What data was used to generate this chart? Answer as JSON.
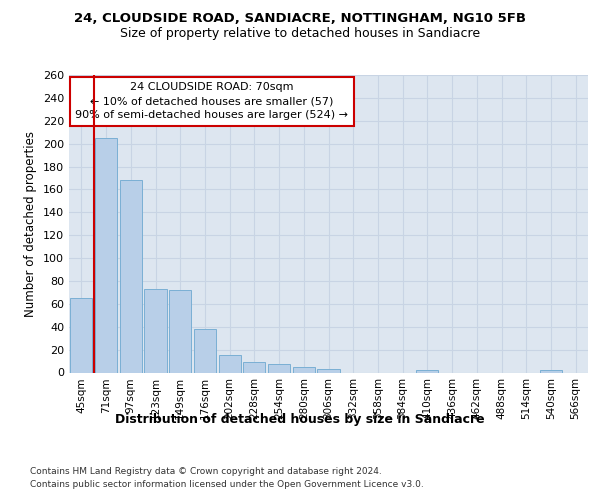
{
  "title1": "24, CLOUDSIDE ROAD, SANDIACRE, NOTTINGHAM, NG10 5FB",
  "title2": "Size of property relative to detached houses in Sandiacre",
  "xlabel_bottom": "Distribution of detached houses by size in Sandiacre",
  "ylabel": "Number of detached properties",
  "categories": [
    "45sqm",
    "71sqm",
    "97sqm",
    "123sqm",
    "149sqm",
    "176sqm",
    "202sqm",
    "228sqm",
    "254sqm",
    "280sqm",
    "306sqm",
    "332sqm",
    "358sqm",
    "384sqm",
    "410sqm",
    "436sqm",
    "462sqm",
    "488sqm",
    "514sqm",
    "540sqm",
    "566sqm"
  ],
  "values": [
    65,
    205,
    168,
    73,
    72,
    38,
    15,
    9,
    7,
    5,
    3,
    0,
    0,
    0,
    2,
    0,
    0,
    0,
    0,
    2,
    0
  ],
  "bar_color": "#b8cfe8",
  "bar_edge_color": "#7aafd4",
  "grid_color": "#c8d4e4",
  "background_color": "#dde6f0",
  "property_label": "24 CLOUDSIDE ROAD: 70sqm",
  "annotation_line1": "← 10% of detached houses are smaller (57)",
  "annotation_line2": "90% of semi-detached houses are larger (524) →",
  "vline_color": "#cc0000",
  "box_edge_color": "#cc0000",
  "footnote1": "Contains HM Land Registry data © Crown copyright and database right 2024.",
  "footnote2": "Contains public sector information licensed under the Open Government Licence v3.0.",
  "ylim_max": 260,
  "ytick_step": 20,
  "vline_pos": 0.5
}
